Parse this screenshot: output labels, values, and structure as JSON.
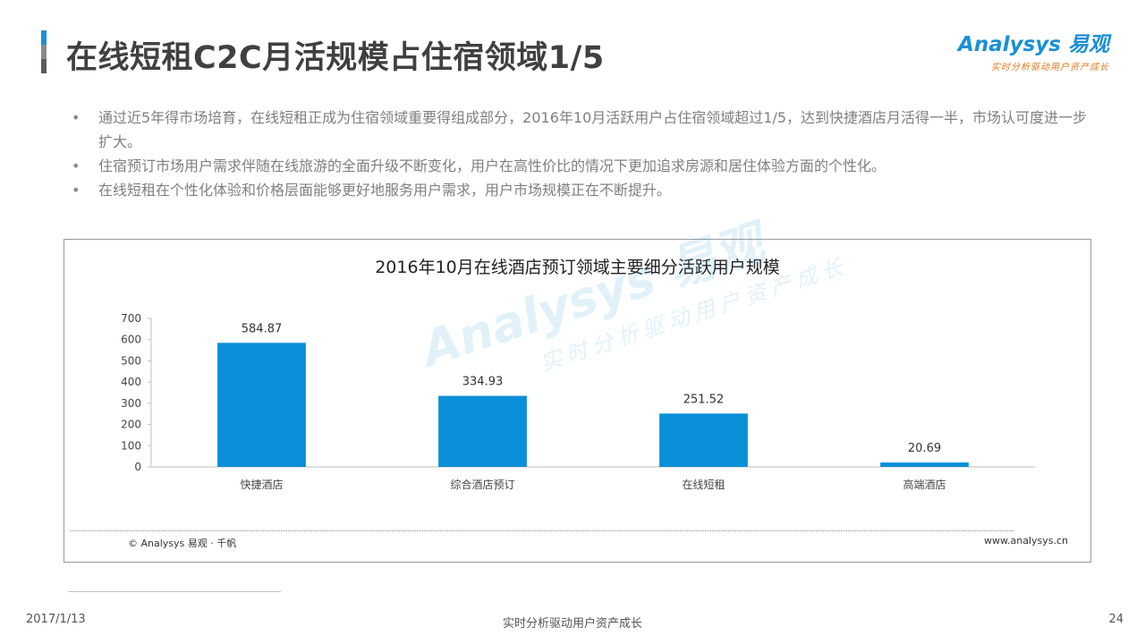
{
  "header": {
    "title": "在线短租C2C月活规模占住宿领域1/5",
    "logo_main": "Analysys 易观",
    "logo_sub": "实时分析驱动用户资产成长",
    "accent_color": "#1a8fd8"
  },
  "bullets": [
    "通过近5年得市场培育，在线短租正成为住宿领域重要得组成部分，2016年10月活跃用户占住宿领域超过1/5，达到快捷酒店月活得一半，市场认可度进一步扩大。",
    "住宿预订市场用户需求伴随在线旅游的全面升级不断变化，用户在高性价比的情况下更加追求房源和居住体验方面的个性化。",
    "在线短租在个性化体验和价格层面能够更好地服务用户需求，用户市场规模正在不断提升。"
  ],
  "chart_data": {
    "type": "bar",
    "title": "2016年10月在线酒店预订领域主要细分活跃用户规模",
    "categories": [
      "快捷酒店",
      "综合酒店预订",
      "在线短租",
      "高端酒店"
    ],
    "values": [
      584.87,
      334.93,
      251.52,
      20.69
    ],
    "data_labels": [
      "584.87",
      "334.93",
      "251.52",
      "20.69"
    ],
    "ylim": [
      0,
      700
    ],
    "yticks": [
      0,
      100,
      200,
      300,
      400,
      500,
      600,
      700
    ],
    "xlabel": "",
    "ylabel": "",
    "bar_color": "#0a8fd9",
    "grid": false,
    "legend": "none"
  },
  "chart_footer": {
    "copyright": "© Analysys 易观 · 千帆",
    "site": "www.analysys.cn"
  },
  "watermark": {
    "main": "Analysys 易观",
    "sub": "实时分析驱动用户资产成长"
  },
  "footer": {
    "date": "2017/1/13",
    "slogan": "实时分析驱动用户资产成长",
    "page": "24"
  }
}
